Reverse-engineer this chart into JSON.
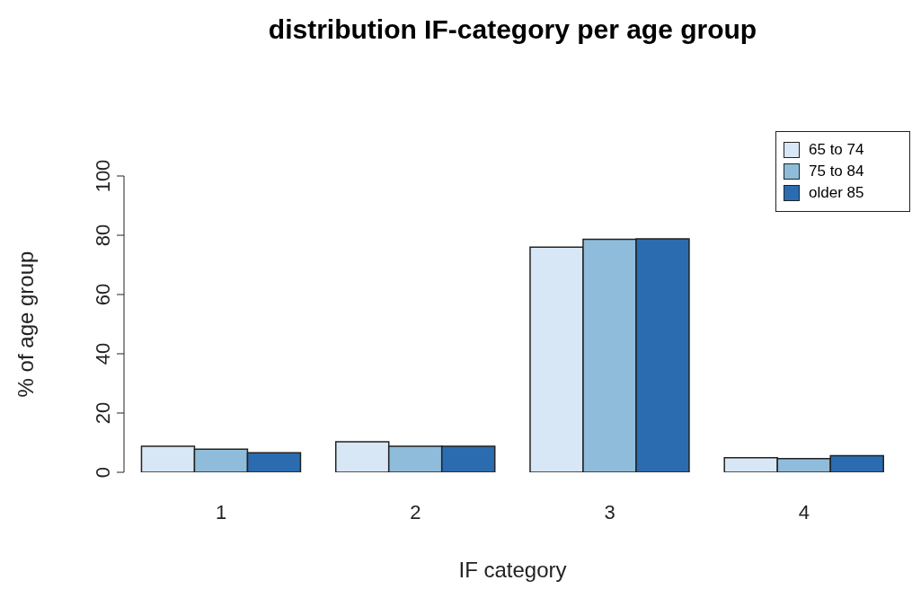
{
  "chart_data": {
    "type": "bar",
    "title": "distribution IF-category per age group",
    "xlabel": "IF category",
    "ylabel": "% of age group",
    "categories": [
      "1",
      "2",
      "3",
      "4"
    ],
    "series": [
      {
        "name": "65 to 74",
        "color": "#d8e7f5",
        "values": [
          8.8,
          10.3,
          76.0,
          4.9
        ]
      },
      {
        "name": "75 to 84",
        "color": "#8fbcdb",
        "values": [
          7.8,
          8.8,
          78.6,
          4.6
        ]
      },
      {
        "name": "older 85",
        "color": "#2b6cb0",
        "values": [
          6.6,
          8.8,
          78.8,
          5.6
        ]
      }
    ],
    "ylim": [
      0,
      100
    ],
    "yticks": [
      0,
      20,
      40,
      60,
      80,
      100
    ],
    "grid": false,
    "legend": "top right"
  }
}
